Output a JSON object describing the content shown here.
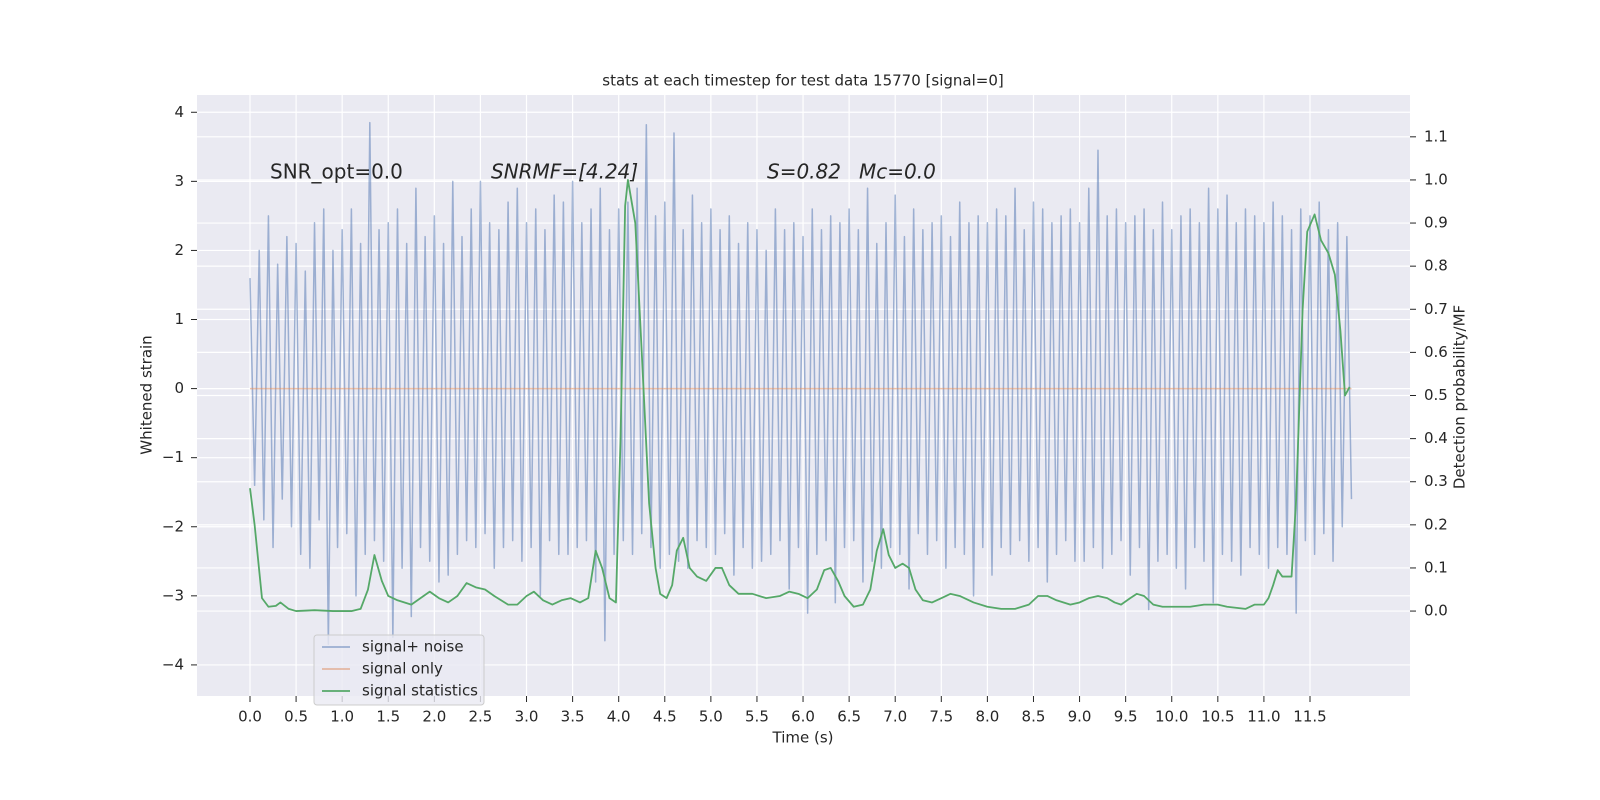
{
  "chart_data": {
    "type": "line",
    "title": "stats at each timestep for test data 15770 [signal=0]",
    "xlabel": "Time (s)",
    "ylabel": "Whitened strain",
    "y2label": "Detection probability/MF",
    "annotations": [
      "SNR_opt=0.0",
      "SNRMF=[4.24]",
      "S=0.82",
      "Mc=0.0"
    ],
    "grid": true,
    "legend": "lower left",
    "xlim": [
      -0.575,
      12.585
    ],
    "ylim": [
      -4.45,
      4.25
    ],
    "y2lim": [
      -0.197,
      1.197
    ],
    "xticks": [
      {
        "value": 0,
        "label": "0.0"
      },
      0.5,
      {
        "value": 1,
        "label": "1.0"
      },
      1.5,
      {
        "value": 2,
        "label": "2.0"
      },
      2.5,
      {
        "value": 3,
        "label": "3.0"
      },
      3.5,
      {
        "value": 4,
        "label": "4.0"
      },
      4.5,
      {
        "value": 5,
        "label": "5.0"
      },
      5.5,
      {
        "value": 6,
        "label": "6.0"
      },
      6.5,
      {
        "value": 7,
        "label": "7.0"
      },
      7.5,
      {
        "value": 8,
        "label": "8.0"
      },
      8.5,
      {
        "value": 9,
        "label": "9.0"
      },
      9.5,
      {
        "value": 10,
        "label": "10.0"
      },
      10.5,
      {
        "value": 11,
        "label": "11.0"
      },
      11.5
    ],
    "yticks": [
      {
        "value": -4,
        "label": "−4"
      },
      {
        "value": -3,
        "label": "−3"
      },
      {
        "value": -2,
        "label": "−2"
      },
      {
        "value": -1,
        "label": "−1"
      },
      0,
      1,
      2,
      3,
      4
    ],
    "y2ticks": [
      {
        "value": 0,
        "label": "0.0"
      },
      0.1,
      0.2,
      0.3,
      0.4,
      0.5,
      0.6,
      0.7,
      0.8,
      0.9,
      {
        "value": 1,
        "label": "1.0"
      },
      1.1
    ],
    "series": [
      {
        "name": "signal+ noise",
        "color": "#4c72b0",
        "alpha": 0.5,
        "x": [
          0,
          0.05,
          0.1,
          0.15,
          0.2,
          0.25,
          0.3,
          0.35,
          0.4,
          0.45,
          0.5,
          0.55,
          0.6,
          0.65,
          0.7,
          0.75,
          0.8,
          0.85,
          0.9,
          0.95,
          1,
          1.05,
          1.1,
          1.15,
          1.2,
          1.25,
          1.3,
          1.35,
          1.4,
          1.45,
          1.5,
          1.55,
          1.6,
          1.65,
          1.7,
          1.75,
          1.8,
          1.85,
          1.9,
          1.95,
          2,
          2.05,
          2.1,
          2.15,
          2.2,
          2.25,
          2.3,
          2.35,
          2.4,
          2.45,
          2.5,
          2.55,
          2.6,
          2.65,
          2.7,
          2.75,
          2.8,
          2.85,
          2.9,
          2.95,
          3,
          3.05,
          3.1,
          3.15,
          3.2,
          3.25,
          3.3,
          3.35,
          3.4,
          3.45,
          3.5,
          3.55,
          3.6,
          3.65,
          3.7,
          3.75,
          3.8,
          3.85,
          3.9,
          3.95,
          4,
          4.05,
          4.1,
          4.15,
          4.2,
          4.25,
          4.3,
          4.35,
          4.4,
          4.45,
          4.5,
          4.55,
          4.6,
          4.65,
          4.7,
          4.75,
          4.8,
          4.85,
          4.9,
          4.95,
          5,
          5.05,
          5.1,
          5.15,
          5.2,
          5.25,
          5.3,
          5.35,
          5.4,
          5.45,
          5.5,
          5.55,
          5.6,
          5.65,
          5.7,
          5.75,
          5.8,
          5.85,
          5.9,
          5.95,
          6,
          6.05,
          6.1,
          6.15,
          6.2,
          6.25,
          6.3,
          6.35,
          6.4,
          6.45,
          6.5,
          6.55,
          6.6,
          6.65,
          6.7,
          6.75,
          6.8,
          6.85,
          6.9,
          6.95,
          7,
          7.05,
          7.1,
          7.15,
          7.2,
          7.25,
          7.3,
          7.35,
          7.4,
          7.45,
          7.5,
          7.55,
          7.6,
          7.65,
          7.7,
          7.75,
          7.8,
          7.85,
          7.9,
          7.95,
          8,
          8.05,
          8.1,
          8.15,
          8.2,
          8.25,
          8.3,
          8.35,
          8.4,
          8.45,
          8.5,
          8.55,
          8.6,
          8.65,
          8.7,
          8.75,
          8.8,
          8.85,
          8.9,
          8.95,
          9,
          9.05,
          9.1,
          9.15,
          9.2,
          9.25,
          9.3,
          9.35,
          9.4,
          9.45,
          9.5,
          9.55,
          9.6,
          9.65,
          9.7,
          9.75,
          9.8,
          9.85,
          9.9,
          9.95,
          10,
          10.05,
          10.1,
          10.15,
          10.2,
          10.25,
          10.3,
          10.35,
          10.4,
          10.45,
          10.5,
          10.55,
          10.6,
          10.65,
          10.7,
          10.75,
          10.8,
          10.85,
          10.9,
          10.95,
          11,
          11.05,
          11.1,
          11.15,
          11.2,
          11.25,
          11.3,
          11.35,
          11.4,
          11.45,
          11.5,
          11.55,
          11.6,
          11.65,
          11.7,
          11.75,
          11.8,
          11.85,
          11.9,
          11.95
        ],
        "values": [
          1.6,
          -1.4,
          2.0,
          -1.9,
          2.5,
          -2.3,
          1.8,
          -1.6,
          2.2,
          -2.0,
          2.1,
          -2.4,
          1.7,
          -2.6,
          2.4,
          -1.9,
          2.6,
          -3.7,
          2.0,
          -2.3,
          2.3,
          -2.1,
          2.6,
          -3.0,
          2.1,
          -2.4,
          3.85,
          -2.2,
          2.3,
          -2.5,
          2.4,
          -3.6,
          2.6,
          -2.6,
          2.1,
          -3.3,
          2.9,
          -2.3,
          2.2,
          -2.5,
          2.5,
          -2.8,
          2.1,
          -2.7,
          3.0,
          -2.4,
          2.2,
          -2.2,
          2.6,
          -2.3,
          3.0,
          -2.1,
          2.4,
          -2.6,
          2.3,
          -2.3,
          2.7,
          -2.2,
          2.9,
          -2.5,
          2.4,
          -2.3,
          2.6,
          -3.0,
          2.3,
          -2.2,
          2.8,
          -2.4,
          2.7,
          -2.4,
          3.0,
          -2.3,
          2.4,
          -2.2,
          2.6,
          -2.8,
          2.9,
          -3.65,
          2.3,
          -2.4,
          2.6,
          -2.2,
          2.7,
          -2.4,
          2.9,
          -2.1,
          3.82,
          -2.3,
          2.5,
          -2.6,
          2.7,
          -2.4,
          3.7,
          -2.5,
          2.3,
          -2.6,
          2.8,
          -2.2,
          2.4,
          -2.3,
          2.6,
          -2.4,
          2.3,
          -2.1,
          2.5,
          -2.7,
          2.1,
          -2.3,
          2.4,
          -2.6,
          2.3,
          -2.5,
          2.0,
          -2.4,
          2.6,
          -2.2,
          2.3,
          -2.9,
          2.4,
          -2.3,
          2.2,
          -3.25,
          2.6,
          -2.4,
          2.3,
          -2.2,
          2.5,
          -3.1,
          2.4,
          -2.3,
          2.6,
          -2.2,
          2.3,
          -2.8,
          2.9,
          -2.5,
          2.1,
          -2.6,
          2.4,
          -2.3,
          2.8,
          -2.4,
          2.2,
          -2.9,
          2.6,
          -2.1,
          2.3,
          -2.4,
          2.4,
          -2.2,
          2.5,
          -2.6,
          2.2,
          -2.3,
          2.7,
          -2.4,
          2.4,
          -3.0,
          2.5,
          -2.3,
          2.4,
          -2.7,
          2.6,
          -2.3,
          2.5,
          -2.4,
          2.9,
          -2.2,
          2.3,
          -2.5,
          2.7,
          -2.3,
          2.6,
          -2.8,
          2.4,
          -2.4,
          2.5,
          -2.2,
          2.6,
          -2.5,
          2.4,
          -2.5,
          2.9,
          -2.3,
          3.45,
          -2.6,
          2.5,
          -2.4,
          2.6,
          -2.2,
          2.4,
          -2.7,
          2.5,
          -2.3,
          2.6,
          -3.2,
          2.3,
          -2.5,
          2.7,
          -2.4,
          2.3,
          -2.6,
          2.5,
          -2.9,
          2.6,
          -2.3,
          2.4,
          -2.5,
          2.9,
          -3.1,
          2.6,
          -2.4,
          2.8,
          -2.5,
          2.4,
          -2.7,
          2.6,
          -2.3,
          2.5,
          -2.4,
          2.4,
          -2.6,
          2.7,
          -2.3,
          2.5,
          -2.4,
          2.3,
          -3.25,
          2.6,
          -2.2,
          2.5,
          -2.4,
          2.7,
          -2.1,
          2.3,
          -2.5,
          2.4,
          -2.0,
          2.2,
          -1.6
        ]
      },
      {
        "name": "signal only",
        "color": "#dd8452",
        "alpha": 0.5,
        "x": [
          0,
          11.95
        ],
        "values": [
          0,
          0
        ]
      },
      {
        "name": "signal statistics",
        "color": "#55a868",
        "alpha": 1,
        "axis": "y2",
        "x": [
          0,
          0.05,
          0.13,
          0.2,
          0.28,
          0.33,
          0.42,
          0.5,
          0.7,
          0.9,
          1.1,
          1.2,
          1.28,
          1.35,
          1.43,
          1.5,
          1.6,
          1.75,
          1.85,
          1.95,
          2.05,
          2.15,
          2.25,
          2.35,
          2.45,
          2.55,
          2.65,
          2.8,
          2.9,
          3.0,
          3.08,
          3.18,
          3.28,
          3.38,
          3.48,
          3.58,
          3.67,
          3.75,
          3.82,
          3.9,
          3.97,
          4.02,
          4.07,
          4.1,
          4.18,
          4.25,
          4.33,
          4.4,
          4.45,
          4.52,
          4.58,
          4.63,
          4.7,
          4.77,
          4.85,
          4.95,
          5.05,
          5.12,
          5.2,
          5.3,
          5.45,
          5.6,
          5.75,
          5.85,
          5.95,
          6.05,
          6.15,
          6.23,
          6.3,
          6.38,
          6.45,
          6.55,
          6.65,
          6.73,
          6.8,
          6.87,
          6.93,
          7.0,
          7.08,
          7.15,
          7.22,
          7.3,
          7.4,
          7.5,
          7.6,
          7.7,
          7.85,
          8.0,
          8.15,
          8.3,
          8.45,
          8.55,
          8.65,
          8.75,
          8.9,
          9.0,
          9.1,
          9.2,
          9.3,
          9.38,
          9.45,
          9.55,
          9.62,
          9.7,
          9.8,
          9.9,
          10.0,
          10.2,
          10.35,
          10.5,
          10.6,
          10.8,
          10.9,
          11.0,
          11.05,
          11.1,
          11.15,
          11.2,
          11.3,
          11.35,
          11.42,
          11.47,
          11.55,
          11.62,
          11.7,
          11.77,
          11.83,
          11.88,
          11.93
        ],
        "values": [
          0.285,
          0.2,
          0.03,
          0.01,
          0.012,
          0.02,
          0.005,
          0.0,
          0.002,
          0.0,
          0.0,
          0.005,
          0.05,
          0.13,
          0.07,
          0.035,
          0.025,
          0.015,
          0.03,
          0.045,
          0.03,
          0.02,
          0.035,
          0.065,
          0.055,
          0.05,
          0.035,
          0.015,
          0.015,
          0.035,
          0.045,
          0.025,
          0.015,
          0.025,
          0.03,
          0.02,
          0.03,
          0.14,
          0.1,
          0.03,
          0.02,
          0.4,
          0.94,
          1.0,
          0.9,
          0.6,
          0.25,
          0.1,
          0.04,
          0.03,
          0.06,
          0.14,
          0.17,
          0.1,
          0.08,
          0.07,
          0.1,
          0.1,
          0.06,
          0.04,
          0.04,
          0.03,
          0.035,
          0.045,
          0.04,
          0.03,
          0.05,
          0.095,
          0.1,
          0.07,
          0.035,
          0.01,
          0.015,
          0.05,
          0.14,
          0.19,
          0.13,
          0.1,
          0.11,
          0.1,
          0.05,
          0.025,
          0.02,
          0.03,
          0.04,
          0.035,
          0.02,
          0.01,
          0.005,
          0.005,
          0.015,
          0.035,
          0.035,
          0.025,
          0.015,
          0.02,
          0.03,
          0.035,
          0.03,
          0.02,
          0.015,
          0.03,
          0.04,
          0.035,
          0.015,
          0.01,
          0.01,
          0.01,
          0.015,
          0.015,
          0.01,
          0.005,
          0.015,
          0.015,
          0.03,
          0.06,
          0.095,
          0.08,
          0.08,
          0.26,
          0.7,
          0.88,
          0.92,
          0.86,
          0.83,
          0.78,
          0.65,
          0.5,
          0.52
        ]
      }
    ]
  }
}
